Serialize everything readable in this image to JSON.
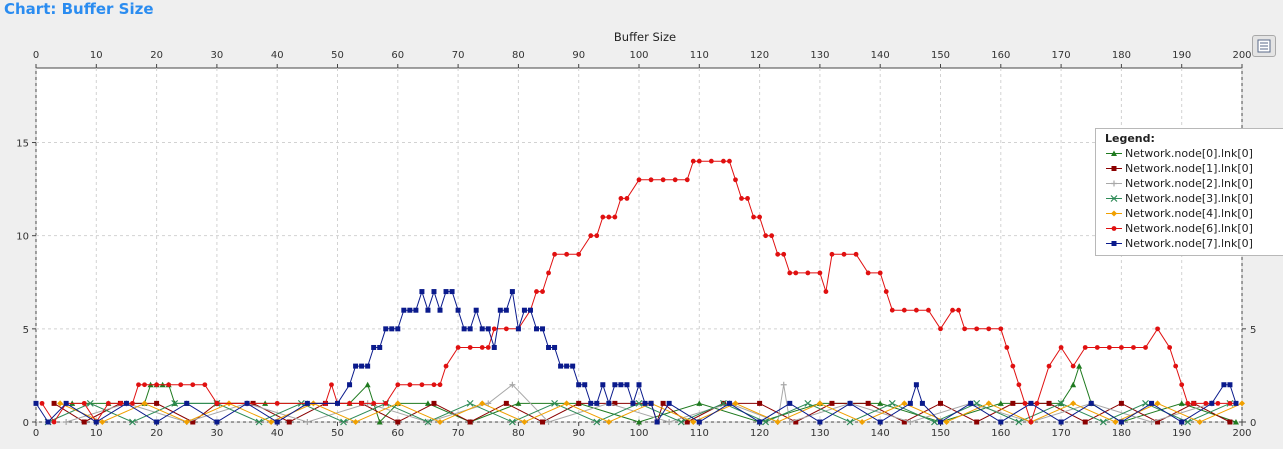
{
  "page": {
    "title": "Chart: Buffer Size"
  },
  "colors": {
    "background": "#efefef",
    "plot": "#ffffff",
    "grid": "#d2d2d2",
    "title": "#2a8cf0"
  },
  "toolbar": {
    "icon": "list-icon"
  },
  "legend": {
    "title": "Legend:",
    "placement": "right"
  },
  "chart_data": {
    "type": "line",
    "title": "Buffer Size",
    "xlim": [
      0,
      200
    ],
    "ylim": [
      0,
      19
    ],
    "xticks": [
      0,
      10,
      20,
      30,
      40,
      50,
      60,
      70,
      80,
      90,
      100,
      110,
      120,
      130,
      140,
      150,
      160,
      170,
      180,
      190,
      200
    ],
    "yticks": [
      0,
      5,
      10,
      15
    ],
    "grid": true,
    "series": [
      {
        "name": "Network.node[0].lnk[0]",
        "color": "#1f7a1f",
        "marker": "triangle",
        "x": [
          6,
          12,
          18,
          19,
          20,
          21,
          22,
          23,
          25,
          30,
          38,
          45,
          52,
          55,
          56,
          57,
          60,
          65,
          72,
          80,
          90,
          100,
          110,
          120,
          130,
          140,
          150,
          160,
          170,
          172,
          173,
          175,
          180,
          190,
          199
        ],
        "y": [
          1,
          1,
          1,
          2,
          2,
          2,
          2,
          1,
          1,
          1,
          1,
          1,
          1,
          2,
          1,
          0,
          1,
          1,
          0,
          1,
          1,
          0,
          1,
          0,
          1,
          1,
          0,
          1,
          1,
          2,
          3,
          1,
          0,
          1,
          0
        ]
      },
      {
        "name": "Network.node[1].lnk[0]",
        "color": "#8b0000",
        "marker": "square",
        "x": [
          3,
          8,
          14,
          20,
          26,
          30,
          36,
          42,
          48,
          54,
          60,
          66,
          72,
          78,
          84,
          90,
          96,
          102,
          103,
          104,
          108,
          114,
          120,
          126,
          132,
          138,
          144,
          150,
          156,
          162,
          168,
          174,
          180,
          186,
          192,
          198
        ],
        "y": [
          1,
          0,
          1,
          1,
          0,
          1,
          1,
          0,
          1,
          1,
          0,
          1,
          0,
          1,
          0,
          1,
          1,
          1,
          0,
          1,
          0,
          1,
          1,
          0,
          1,
          1,
          0,
          1,
          0,
          1,
          1,
          0,
          1,
          0,
          1,
          0
        ]
      },
      {
        "name": "Network.node[2].lnk[0]",
        "color": "#a8a8a8",
        "marker": "plus",
        "x": [
          5,
          15,
          25,
          35,
          45,
          55,
          65,
          75,
          79,
          85,
          95,
          105,
          115,
          123,
          124,
          125,
          135,
          145,
          155,
          165,
          175,
          185,
          195
        ],
        "y": [
          0,
          1,
          0,
          1,
          0,
          1,
          0,
          1,
          2,
          0,
          1,
          0,
          1,
          0,
          2,
          0,
          1,
          0,
          1,
          0,
          1,
          0,
          1
        ]
      },
      {
        "name": "Network.node[3].lnk[0]",
        "color": "#2e8b57",
        "marker": "x",
        "x": [
          2,
          9,
          16,
          23,
          30,
          37,
          44,
          51,
          58,
          65,
          72,
          79,
          86,
          93,
          100,
          107,
          114,
          121,
          128,
          135,
          142,
          149,
          156,
          163,
          170,
          177,
          184,
          191,
          198
        ],
        "y": [
          0,
          1,
          0,
          1,
          1,
          0,
          1,
          0,
          1,
          0,
          1,
          0,
          1,
          0,
          1,
          0,
          1,
          0,
          1,
          0,
          1,
          0,
          1,
          0,
          1,
          0,
          1,
          0,
          1
        ]
      },
      {
        "name": "Network.node[4].lnk[0]",
        "color": "#f0a000",
        "marker": "diamond",
        "x": [
          4,
          11,
          18,
          25,
          32,
          39,
          46,
          53,
          60,
          67,
          74,
          81,
          88,
          95,
          102,
          109,
          116,
          123,
          130,
          137,
          144,
          151,
          158,
          165,
          172,
          179,
          186,
          193,
          200
        ],
        "y": [
          1,
          0,
          1,
          0,
          1,
          0,
          1,
          0,
          1,
          0,
          1,
          0,
          1,
          0,
          1,
          0,
          1,
          0,
          1,
          0,
          1,
          0,
          1,
          0,
          1,
          0,
          1,
          0,
          1
        ]
      },
      {
        "name": "Network.node[6].lnk[0]",
        "color": "#e01010",
        "marker": "circle",
        "x": [
          1,
          3,
          5,
          8,
          10,
          12,
          14,
          16,
          17,
          18,
          20,
          22,
          24,
          26,
          28,
          30,
          35,
          40,
          45,
          48,
          49,
          50,
          52,
          54,
          56,
          58,
          60,
          62,
          64,
          66,
          67,
          68,
          70,
          72,
          74,
          75,
          76,
          78,
          80,
          82,
          83,
          84,
          85,
          86,
          88,
          90,
          92,
          93,
          94,
          95,
          96,
          97,
          98,
          100,
          102,
          104,
          106,
          108,
          109,
          110,
          112,
          114,
          115,
          116,
          117,
          118,
          119,
          120,
          121,
          122,
          123,
          124,
          125,
          126,
          128,
          130,
          131,
          132,
          134,
          136,
          138,
          140,
          141,
          142,
          144,
          146,
          148,
          150,
          152,
          153,
          154,
          156,
          158,
          160,
          161,
          162,
          163,
          164,
          165,
          166,
          168,
          170,
          172,
          174,
          176,
          178,
          180,
          182,
          184,
          186,
          188,
          189,
          190,
          191,
          192,
          194,
          196,
          198,
          199
        ],
        "y": [
          1,
          0,
          1,
          1,
          0,
          1,
          1,
          1,
          2,
          2,
          2,
          2,
          2,
          2,
          2,
          1,
          1,
          1,
          1,
          1,
          2,
          1,
          1,
          1,
          1,
          1,
          2,
          2,
          2,
          2,
          2,
          3,
          4,
          4,
          4,
          4,
          5,
          5,
          5,
          6,
          7,
          7,
          8,
          9,
          9,
          9,
          10,
          10,
          11,
          11,
          11,
          12,
          12,
          13,
          13,
          13,
          13,
          13,
          14,
          14,
          14,
          14,
          14,
          13,
          12,
          12,
          11,
          11,
          10,
          10,
          9,
          9,
          8,
          8,
          8,
          8,
          7,
          9,
          9,
          9,
          8,
          8,
          7,
          6,
          6,
          6,
          6,
          5,
          6,
          6,
          5,
          5,
          5,
          5,
          4,
          3,
          2,
          1,
          0,
          1,
          3,
          4,
          3,
          4,
          4,
          4,
          4,
          4,
          4,
          5,
          4,
          3,
          2,
          1,
          1,
          1,
          1,
          1,
          1
        ]
      },
      {
        "name": "Network.node[7].lnk[0]",
        "color": "#0a1a8c",
        "marker": "square",
        "x": [
          0,
          2,
          5,
          10,
          15,
          20,
          25,
          30,
          35,
          40,
          45,
          50,
          52,
          53,
          54,
          55,
          56,
          57,
          58,
          59,
          60,
          61,
          62,
          63,
          64,
          65,
          66,
          67,
          68,
          69,
          70,
          71,
          72,
          73,
          74,
          75,
          76,
          77,
          78,
          79,
          80,
          81,
          82,
          83,
          84,
          85,
          86,
          87,
          88,
          89,
          90,
          91,
          92,
          93,
          94,
          95,
          96,
          97,
          98,
          99,
          100,
          101,
          102,
          103,
          105,
          110,
          115,
          120,
          125,
          130,
          135,
          140,
          145,
          146,
          147,
          150,
          155,
          160,
          165,
          170,
          175,
          180,
          185,
          190,
          195,
          197,
          198,
          199
        ],
        "y": [
          1,
          0,
          1,
          0,
          1,
          0,
          1,
          0,
          1,
          0,
          1,
          1,
          2,
          3,
          3,
          3,
          4,
          4,
          5,
          5,
          5,
          6,
          6,
          6,
          7,
          6,
          7,
          6,
          7,
          7,
          6,
          5,
          5,
          6,
          5,
          5,
          4,
          6,
          6,
          7,
          5,
          6,
          6,
          5,
          5,
          4,
          4,
          3,
          3,
          3,
          2,
          2,
          1,
          1,
          2,
          1,
          2,
          2,
          2,
          1,
          2,
          1,
          1,
          0,
          1,
          0,
          1,
          0,
          1,
          0,
          1,
          0,
          1,
          2,
          1,
          0,
          1,
          0,
          1,
          0,
          1,
          0,
          1,
          0,
          1,
          2,
          2,
          1
        ]
      }
    ]
  }
}
